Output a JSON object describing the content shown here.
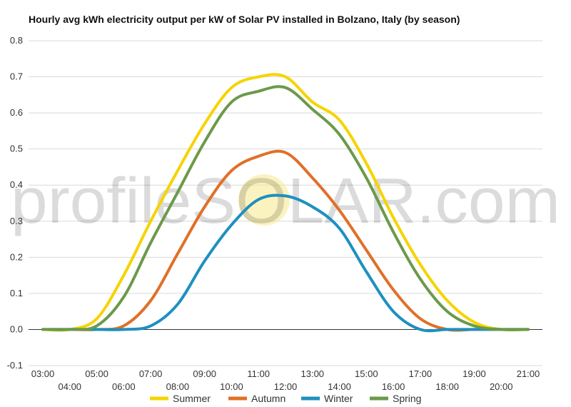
{
  "chart_data": {
    "type": "line",
    "title": "Hourly avg kWh electricity output per kW of Solar PV installed in Bolzano, Italy (by season)",
    "xlabel": "",
    "ylabel": "",
    "ylim": [
      -0.1,
      0.8
    ],
    "yticks": [
      "-0.1",
      "0.0",
      "0.1",
      "0.2",
      "0.3",
      "0.4",
      "0.5",
      "0.6",
      "0.7",
      "0.8"
    ],
    "categories": [
      "03:00",
      "04:00",
      "05:00",
      "06:00",
      "07:00",
      "08:00",
      "09:00",
      "10:00",
      "11:00",
      "12:00",
      "13:00",
      "14:00",
      "15:00",
      "16:00",
      "17:00",
      "18:00",
      "19:00",
      "20:00",
      "21:00"
    ],
    "grid": true,
    "legend_position": "bottom",
    "watermark": "profileSOLAR.com",
    "series": [
      {
        "name": "Summer",
        "color": "#f5d400",
        "values": [
          0,
          0,
          0.03,
          0.15,
          0.3,
          0.44,
          0.57,
          0.67,
          0.7,
          0.7,
          0.63,
          0.58,
          0.46,
          0.31,
          0.18,
          0.08,
          0.02,
          0,
          0
        ]
      },
      {
        "name": "Autumn",
        "color": "#e07028",
        "values": [
          0,
          0,
          0,
          0.01,
          0.08,
          0.21,
          0.34,
          0.44,
          0.48,
          0.49,
          0.42,
          0.33,
          0.22,
          0.11,
          0.03,
          0,
          0,
          0,
          0
        ]
      },
      {
        "name": "Winter",
        "color": "#1e90c0",
        "values": [
          0,
          0,
          0,
          0,
          0.01,
          0.07,
          0.19,
          0.29,
          0.36,
          0.37,
          0.34,
          0.28,
          0.16,
          0.05,
          0,
          0,
          0,
          0,
          0
        ]
      },
      {
        "name": "Spring",
        "color": "#6b9a4a",
        "values": [
          0,
          0,
          0.01,
          0.09,
          0.24,
          0.38,
          0.52,
          0.63,
          0.66,
          0.67,
          0.61,
          0.54,
          0.42,
          0.27,
          0.14,
          0.05,
          0.01,
          0,
          0
        ]
      }
    ]
  }
}
